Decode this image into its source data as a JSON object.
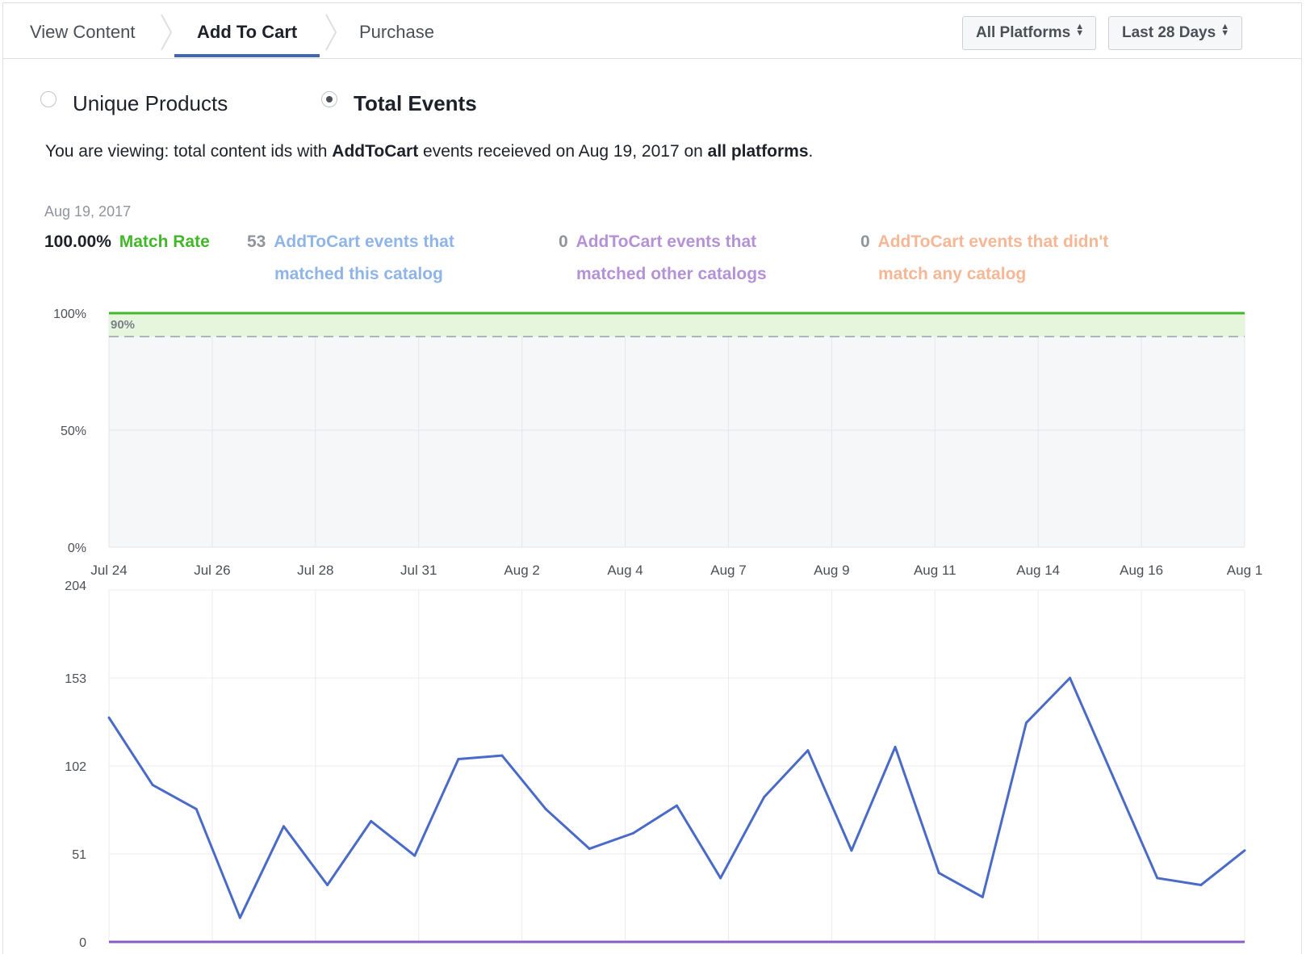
{
  "tabs": [
    {
      "label": "View Content",
      "active": false
    },
    {
      "label": "Add To Cart",
      "active": true
    },
    {
      "label": "Purchase",
      "active": false
    }
  ],
  "filters": {
    "platform": "All Platforms",
    "range": "Last 28 Days"
  },
  "toggle": {
    "unique_products": "Unique Products",
    "total_events": "Total Events",
    "selected": "Total Events"
  },
  "viewing": {
    "prefix": "You are viewing: total content ids with ",
    "event": "AddToCart",
    "middle": " events receieved on Aug 19, 2017 on ",
    "platform": "all platforms",
    "suffix": "."
  },
  "summary": {
    "date": "Aug 19, 2017",
    "match_rate_value": "100.00%",
    "match_rate_label": "Match Rate",
    "matched_this_count": "53",
    "matched_this_line1": "AddToCart events that",
    "matched_this_line2": "matched this catalog",
    "matched_other_count": "0",
    "matched_other_line1": "AddToCart events that",
    "matched_other_line2": "matched other catalogs",
    "unmatched_count": "0",
    "unmatched_line1": "AddToCart events that didn't",
    "unmatched_line2": "match any catalog"
  },
  "colors": {
    "match_rate": "#42b72a",
    "matched_this": "#8fb4e8",
    "matched_other": "#b591d6",
    "unmatched": "#f5b795",
    "line": "#4a6ac8",
    "zero_line": "#8a5cc5"
  },
  "chart_data": [
    {
      "type": "area",
      "x_ticks": [
        "Jul 24",
        "Jul 26",
        "Jul 28",
        "Jul 31",
        "Aug 2",
        "Aug 4",
        "Aug 7",
        "Aug 9",
        "Aug 11",
        "Aug 14",
        "Aug 16",
        "Aug 1"
      ],
      "y_ticks": [
        "100%",
        "50%",
        "0%"
      ],
      "ylim": [
        0,
        100
      ],
      "series": [
        {
          "values": [
            100,
            100,
            100,
            100,
            100,
            100,
            100,
            100,
            100,
            100,
            100,
            100,
            100,
            100,
            100,
            100,
            100,
            100,
            100,
            100,
            100,
            100,
            100,
            100,
            100,
            100,
            100
          ]
        }
      ],
      "threshold": {
        "value": 90,
        "label": "90%"
      },
      "grid": true
    },
    {
      "type": "line",
      "y_ticks": [
        "204",
        "153",
        "102",
        "51",
        "0"
      ],
      "ylim": [
        0,
        204
      ],
      "series": [
        {
          "values": [
            130,
            91,
            77,
            14,
            67,
            33,
            70,
            50,
            106,
            108,
            77,
            54,
            63,
            79,
            37,
            84,
            111,
            53,
            113,
            40,
            26,
            127,
            153,
            95,
            37,
            33,
            53
          ]
        },
        {
          "values": [
            0,
            0,
            0,
            0,
            0,
            0,
            0,
            0,
            0,
            0,
            0,
            0,
            0,
            0,
            0,
            0,
            0,
            0,
            0,
            0,
            0,
            0,
            0,
            0,
            0,
            0,
            0
          ]
        }
      ],
      "grid": true
    }
  ]
}
